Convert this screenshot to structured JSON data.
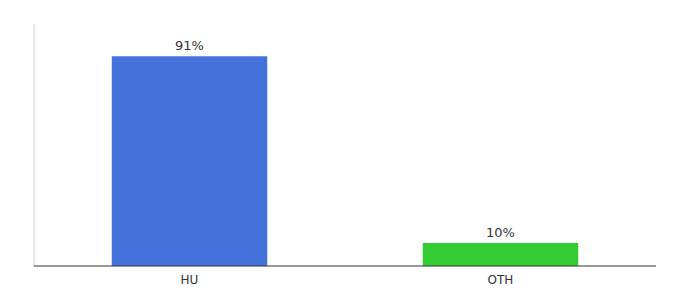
{
  "chart_data": {
    "type": "bar",
    "categories": [
      "HU",
      "OTH"
    ],
    "values": [
      91,
      10
    ],
    "colors": [
      "#4472db",
      "#33cc33"
    ],
    "data_labels": true,
    "value_labels": [
      "91%",
      "10%"
    ],
    "ylim": [
      0,
      105
    ],
    "yticks": [],
    "tick_labels": "x",
    "grid": false
  }
}
